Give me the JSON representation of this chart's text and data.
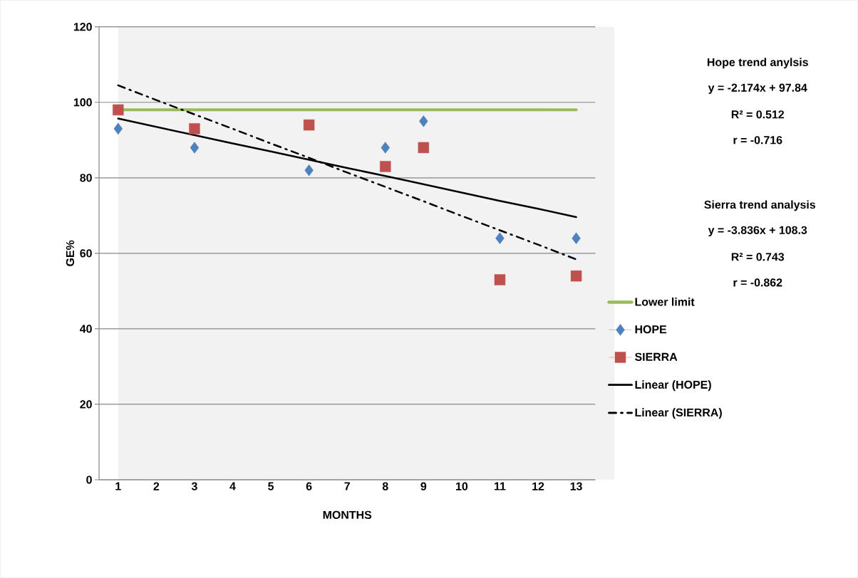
{
  "chart_data": {
    "type": "line",
    "xlabel": "MONTHS",
    "ylabel": "GE%",
    "categories": [
      "1",
      "2",
      "3",
      "4",
      "5",
      "6",
      "7",
      "8",
      "9",
      "10",
      "11",
      "12",
      "13"
    ],
    "ylim": [
      0,
      120
    ],
    "yticks": [
      0,
      20,
      40,
      60,
      80,
      100,
      120
    ],
    "grid": "y",
    "legend": "right",
    "series": [
      {
        "name": "Lower limit",
        "color": "#9bbb59",
        "marker": "none",
        "line_style": "solid",
        "values": [
          98,
          98,
          98,
          98,
          98,
          98,
          98,
          98,
          98,
          98,
          98,
          98,
          98
        ]
      },
      {
        "name": "HOPE",
        "type": "scatter",
        "color": "#4f81bd",
        "marker": "diamond",
        "values": [
          93,
          null,
          88,
          null,
          null,
          82,
          null,
          88,
          95,
          null,
          64,
          null,
          64
        ]
      },
      {
        "name": "SIERRA",
        "type": "scatter",
        "color": "#c0504d",
        "marker": "square",
        "values": [
          98,
          null,
          93,
          null,
          null,
          94,
          null,
          83,
          88,
          null,
          53,
          null,
          54
        ]
      },
      {
        "name": "Linear (HOPE)",
        "color": "#000000",
        "marker": "none",
        "line_style": "solid",
        "values": [
          95.7,
          93.5,
          91.3,
          89.1,
          87.0,
          84.8,
          82.6,
          80.5,
          78.3,
          76.1,
          73.9,
          71.8,
          69.6
        ]
      },
      {
        "name": "Linear (SIERRA)",
        "color": "#000000",
        "marker": "none",
        "line_style": "dashdot",
        "values": [
          104.5,
          100.6,
          96.8,
          93.0,
          89.1,
          85.3,
          81.4,
          77.6,
          73.8,
          69.9,
          66.1,
          62.3,
          58.4
        ]
      }
    ],
    "annotations": [
      "Hope trend anylsis",
      "y = -2.174x + 97.84",
      "R² = 0.512",
      "r = -0.716",
      "Sierra trend analysis",
      "y = -3.836x + 108.3",
      "R² = 0.743",
      "r = -0.862"
    ]
  }
}
